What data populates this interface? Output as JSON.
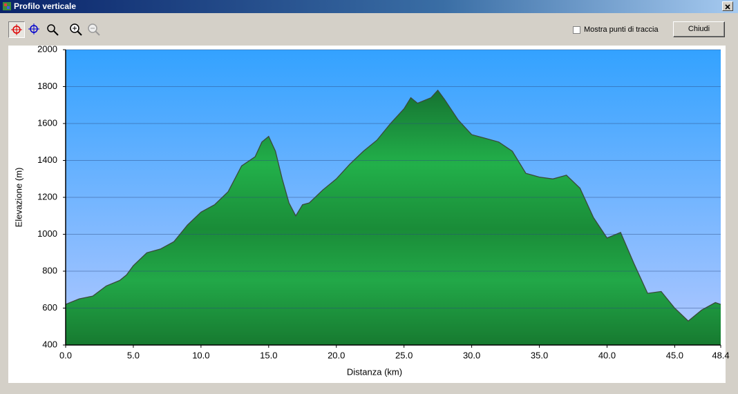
{
  "window": {
    "title": "Profilo verticale",
    "checkbox_label": "Mostra punti di traccia",
    "close_button": "Chiudi"
  },
  "chart_data": {
    "type": "area",
    "x_label": "Distanza    (km)",
    "y_label": "Elevazione (m)",
    "x": [
      0,
      1,
      2,
      3,
      4,
      4.5,
      5,
      6,
      7,
      8,
      9,
      10,
      11,
      12,
      12.5,
      13,
      14,
      14.5,
      15,
      15.5,
      16,
      16.5,
      17,
      17.5,
      18,
      19,
      20,
      21,
      22,
      23,
      24,
      25,
      25.5,
      26,
      27,
      27.5,
      28,
      29,
      30,
      31,
      32,
      33,
      34,
      35,
      36,
      37,
      38,
      39,
      40,
      41,
      42,
      43,
      44,
      45,
      46,
      47,
      48,
      48.4
    ],
    "series": [
      {
        "color": "#1f9a42",
        "values": [
          620,
          650,
          665,
          720,
          750,
          780,
          830,
          900,
          920,
          960,
          1050,
          1120,
          1160,
          1230,
          1300,
          1370,
          1420,
          1500,
          1530,
          1450,
          1300,
          1170,
          1100,
          1160,
          1170,
          1240,
          1300,
          1380,
          1450,
          1510,
          1600,
          1680,
          1740,
          1710,
          1740,
          1780,
          1730,
          1620,
          1540,
          1520,
          1500,
          1450,
          1330,
          1310,
          1300,
          1320,
          1250,
          1090,
          980,
          1010,
          840,
          680,
          690,
          600,
          530,
          590,
          630,
          620
        ]
      }
    ],
    "xlim": [
      0,
      48.4
    ],
    "ylim": [
      400,
      2000
    ],
    "xticks": [
      {
        "value": 0,
        "label": "0.0"
      },
      {
        "value": 5,
        "label": "5.0"
      },
      {
        "value": 10,
        "label": "10.0"
      },
      {
        "value": 15,
        "label": "15.0"
      },
      {
        "value": 20,
        "label": "20.0"
      },
      {
        "value": 25,
        "label": "25.0"
      },
      {
        "value": 30,
        "label": "30.0"
      },
      {
        "value": 35,
        "label": "35.0"
      },
      {
        "value": 40,
        "label": "40.0"
      },
      {
        "value": 45,
        "label": "45.0"
      },
      {
        "value": 48.4,
        "label": "48.4"
      }
    ],
    "yticks": [
      400,
      600,
      800,
      1000,
      1200,
      1400,
      1600,
      1800,
      2000
    ],
    "grid": true
  }
}
